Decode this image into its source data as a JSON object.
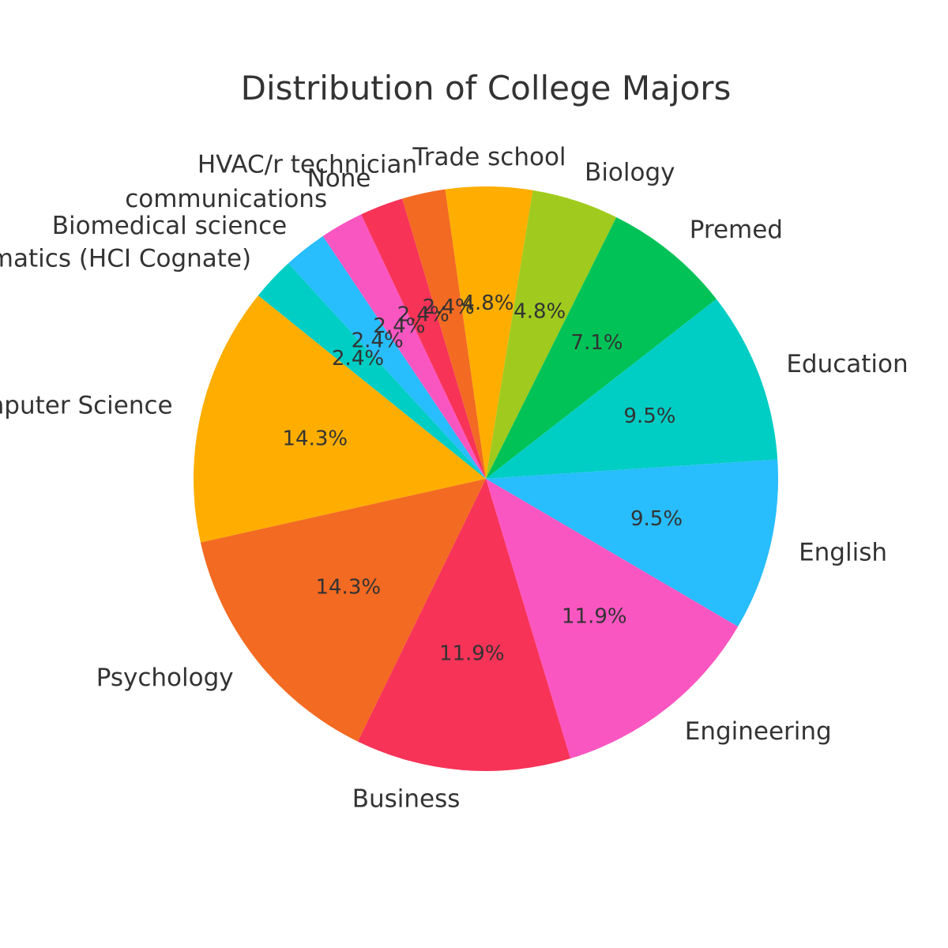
{
  "chart_data": {
    "type": "pie",
    "title": "Distribution of College Majors",
    "categories": [
      "Trade school",
      "Biology",
      "Premed",
      "Education",
      "English",
      "Engineering",
      "Business",
      "Psychology",
      "Computer Science",
      "Informatics (HCI Cognate)",
      "Biomedical science",
      "communications",
      "None",
      "HVAC/r technician"
    ],
    "values": [
      4.8,
      4.8,
      7.1,
      9.5,
      9.5,
      11.9,
      11.9,
      14.3,
      14.3,
      2.4,
      2.4,
      2.4,
      2.4,
      2.4
    ],
    "value_labels": [
      "4.8%",
      "4.8%",
      "7.1%",
      "9.5%",
      "9.5%",
      "11.9%",
      "11.9%",
      "14.3%",
      "14.3%",
      "2.4%",
      "2.4%",
      "2.4%",
      "2.4%",
      "2.4%"
    ],
    "colors": [
      "#FFAE00",
      "#A0CB1E",
      "#00C257",
      "#00CDC4",
      "#28BDFC",
      "#FA56C1",
      "#F73358",
      "#F36A22",
      "#FFAE00",
      "#00CDC4",
      "#28BDFC",
      "#FA56C1",
      "#F73358",
      "#F36A22"
    ],
    "start_angle_deg": 98,
    "direction": "clockwise",
    "legend": "none"
  }
}
